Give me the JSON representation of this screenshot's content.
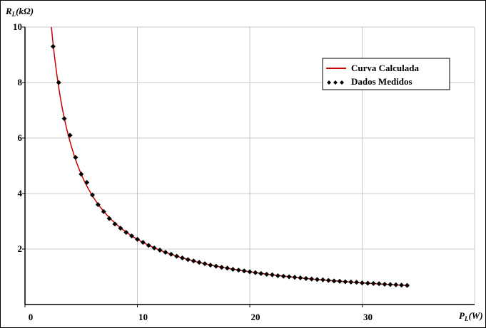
{
  "chart_data": {
    "type": "scatter",
    "title": "",
    "xlabel": {
      "main": "P",
      "sub": "L",
      "rest": "(W)"
    },
    "ylabel": {
      "main": "R",
      "sub": "L",
      "rest": "(kΩ)"
    },
    "xlim": [
      0,
      40
    ],
    "ylim": [
      0,
      10
    ],
    "xticks": [
      0,
      10,
      20,
      30
    ],
    "yticks": [
      2,
      4,
      6,
      8,
      10
    ],
    "grid": true,
    "legend_position": "top-right",
    "series": [
      {
        "name": "Curva Calculada",
        "kind": "line",
        "color": "#cc0000",
        "model": "R = 23.5 / P",
        "x": [
          2.35,
          2.6,
          3.0,
          3.5,
          4.0,
          5.0,
          6.0,
          7.0,
          8.0,
          9.0,
          10.0,
          12.0,
          14.0,
          16.0,
          18.0,
          20.0,
          22.0,
          24.0,
          26.0,
          28.0,
          30.0,
          32.0,
          34.0
        ],
        "y": [
          10.0,
          9.04,
          7.83,
          6.71,
          5.88,
          4.7,
          3.92,
          3.36,
          2.94,
          2.61,
          2.35,
          1.96,
          1.68,
          1.47,
          1.31,
          1.18,
          1.07,
          0.98,
          0.9,
          0.84,
          0.78,
          0.73,
          0.69
        ]
      },
      {
        "name": "Dados Medidos",
        "kind": "markers",
        "color": "#000000",
        "marker": "diamond",
        "x": [
          2.5,
          3.0,
          3.5,
          4.0,
          4.5,
          5.0,
          5.5,
          6.0,
          6.5,
          7.0,
          7.5,
          8.0,
          8.5,
          9.0,
          9.5,
          10.0,
          10.5,
          11.0,
          11.5,
          12.0,
          12.5,
          13.0,
          13.5,
          14.0,
          14.5,
          15.0,
          15.5,
          16.0,
          16.5,
          17.0,
          17.5,
          18.0,
          18.5,
          19.0,
          19.5,
          20.0,
          20.5,
          21.0,
          21.5,
          22.0,
          22.5,
          23.0,
          23.5,
          24.0,
          24.5,
          25.0,
          25.5,
          26.0,
          26.5,
          27.0,
          27.5,
          28.0,
          28.5,
          29.0,
          29.5,
          30.0,
          30.5,
          31.0,
          31.5,
          32.0,
          32.5,
          33.0,
          33.5,
          34.0
        ],
        "y": [
          9.3,
          8.0,
          6.7,
          6.1,
          5.3,
          4.7,
          4.4,
          3.95,
          3.6,
          3.35,
          3.1,
          2.9,
          2.75,
          2.6,
          2.47,
          2.35,
          2.24,
          2.13,
          2.04,
          1.96,
          1.88,
          1.81,
          1.74,
          1.68,
          1.62,
          1.57,
          1.52,
          1.47,
          1.42,
          1.38,
          1.34,
          1.31,
          1.27,
          1.24,
          1.21,
          1.18,
          1.15,
          1.12,
          1.09,
          1.07,
          1.04,
          1.02,
          1.0,
          0.98,
          0.96,
          0.94,
          0.92,
          0.9,
          0.89,
          0.87,
          0.85,
          0.84,
          0.82,
          0.81,
          0.8,
          0.78,
          0.77,
          0.76,
          0.75,
          0.73,
          0.72,
          0.71,
          0.7,
          0.69
        ]
      }
    ]
  }
}
